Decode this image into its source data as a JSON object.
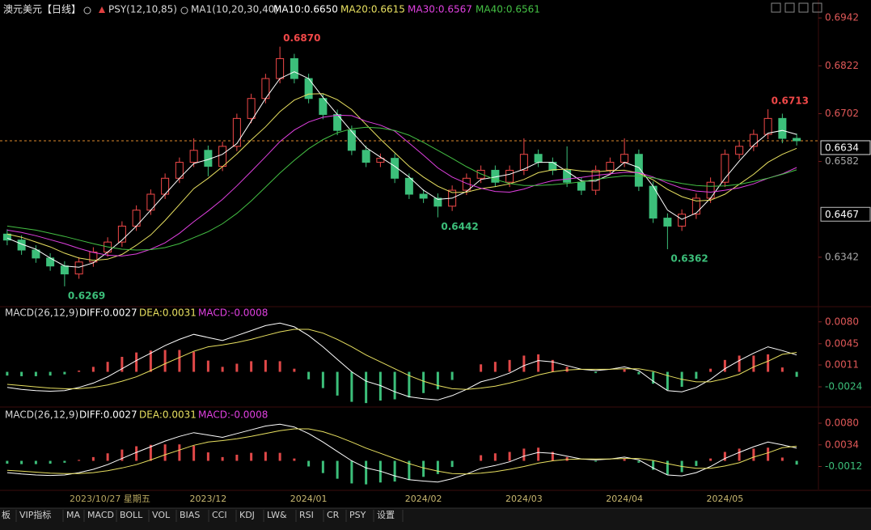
{
  "chart_data": [
    {
      "type": "candlestick",
      "title": "澳元美元【日线】",
      "indicator": "PSY(12,10,85)",
      "ma_label": "MA1(10,20,30,40)",
      "categories": [
        null,
        null,
        null,
        null,
        null,
        null,
        null,
        null,
        null,
        null,
        null,
        null,
        null,
        null,
        "2023/12",
        null,
        null,
        null,
        null,
        null,
        null,
        "2024/01",
        null,
        null,
        null,
        null,
        null,
        null,
        null,
        "2024/02",
        null,
        null,
        null,
        null,
        null,
        null,
        "2024/03",
        null,
        null,
        null,
        null,
        null,
        null,
        "2024/04",
        null,
        null,
        null,
        null,
        null,
        null,
        "2024/05",
        null,
        null,
        null,
        null,
        null
      ],
      "open": [
        0.64,
        0.6385,
        0.636,
        0.634,
        0.632,
        0.63,
        0.633,
        0.6355,
        0.638,
        0.642,
        0.646,
        0.65,
        0.654,
        0.658,
        0.661,
        0.657,
        0.662,
        0.669,
        0.674,
        0.679,
        0.684,
        0.679,
        0.674,
        0.67,
        0.666,
        0.661,
        0.658,
        0.659,
        0.654,
        0.65,
        0.649,
        0.647,
        0.651,
        0.654,
        0.656,
        0.653,
        0.656,
        0.66,
        0.658,
        0.656,
        0.653,
        0.651,
        0.656,
        0.658,
        0.66,
        0.652,
        0.644,
        0.642,
        0.645,
        0.649,
        0.653,
        0.66,
        0.662,
        0.665,
        0.669,
        0.664
      ],
      "high": [
        0.6412,
        0.6397,
        0.6372,
        0.6352,
        0.6332,
        0.6342,
        0.6367,
        0.6392,
        0.6432,
        0.6472,
        0.6512,
        0.6552,
        0.6592,
        0.664,
        0.6622,
        0.6632,
        0.6702,
        0.6752,
        0.6802,
        0.687,
        0.6852,
        0.6802,
        0.6752,
        0.6712,
        0.6672,
        0.6622,
        0.6602,
        0.6602,
        0.6552,
        0.6512,
        0.6502,
        0.6522,
        0.6552,
        0.6572,
        0.6572,
        0.6572,
        0.664,
        0.6612,
        0.6592,
        0.662,
        0.6542,
        0.6572,
        0.6592,
        0.664,
        0.6612,
        0.6532,
        0.6452,
        0.6462,
        0.6502,
        0.6542,
        0.6612,
        0.6632,
        0.6662,
        0.6713,
        0.6702,
        0.6652
      ],
      "low": [
        0.6372,
        0.6348,
        0.6328,
        0.6308,
        0.6269,
        0.6288,
        0.6318,
        0.6343,
        0.6368,
        0.6408,
        0.6448,
        0.6488,
        0.6528,
        0.6568,
        0.6545,
        0.6558,
        0.6608,
        0.6678,
        0.6728,
        0.6778,
        0.6778,
        0.6728,
        0.6688,
        0.6648,
        0.6598,
        0.6568,
        0.6568,
        0.6528,
        0.6488,
        0.6478,
        0.6442,
        0.6458,
        0.6498,
        0.6528,
        0.6518,
        0.6518,
        0.6548,
        0.6568,
        0.6548,
        0.6518,
        0.6498,
        0.6498,
        0.6548,
        0.6568,
        0.6508,
        0.6428,
        0.6362,
        0.6408,
        0.6438,
        0.6478,
        0.6518,
        0.6588,
        0.6608,
        0.6638,
        0.6628,
        0.6622
      ],
      "close": [
        0.6385,
        0.636,
        0.634,
        0.632,
        0.63,
        0.633,
        0.6355,
        0.638,
        0.642,
        0.646,
        0.65,
        0.654,
        0.658,
        0.661,
        0.657,
        0.662,
        0.669,
        0.674,
        0.679,
        0.684,
        0.679,
        0.674,
        0.67,
        0.666,
        0.661,
        0.658,
        0.659,
        0.654,
        0.65,
        0.649,
        0.647,
        0.651,
        0.654,
        0.656,
        0.653,
        0.656,
        0.66,
        0.658,
        0.656,
        0.653,
        0.651,
        0.656,
        0.658,
        0.66,
        0.652,
        0.644,
        0.642,
        0.645,
        0.649,
        0.653,
        0.66,
        0.662,
        0.665,
        0.669,
        0.664,
        0.6634
      ],
      "high_labels": [
        null,
        null,
        null,
        null,
        null,
        null,
        null,
        null,
        null,
        null,
        null,
        null,
        null,
        null,
        null,
        null,
        null,
        null,
        null,
        "0.6870",
        null,
        null,
        null,
        null,
        null,
        null,
        null,
        null,
        null,
        null,
        null,
        null,
        null,
        null,
        null,
        null,
        null,
        null,
        null,
        null,
        null,
        null,
        null,
        null,
        null,
        null,
        null,
        null,
        null,
        null,
        null,
        null,
        null,
        "0.6713",
        null,
        null
      ],
      "low_labels": [
        null,
        null,
        null,
        null,
        "0.6269",
        null,
        null,
        null,
        null,
        null,
        null,
        null,
        null,
        null,
        null,
        null,
        null,
        null,
        null,
        null,
        null,
        null,
        null,
        null,
        null,
        null,
        null,
        null,
        null,
        null,
        "0.6442",
        null,
        null,
        null,
        null,
        null,
        null,
        null,
        null,
        null,
        null,
        null,
        null,
        null,
        null,
        null,
        "0.6362",
        null,
        null,
        null,
        null,
        null,
        null,
        null,
        null,
        null
      ],
      "up_color": "#f04848",
      "down_color": "#3cbf7a",
      "series": [
        {
          "name": "MA10:0.6650",
          "color": "#ffffff",
          "values": [
            0.639,
            0.6375,
            0.6362,
            0.634,
            0.632,
            0.6317,
            0.6328,
            0.6355,
            0.6385,
            0.642,
            0.646,
            0.65,
            0.654,
            0.6577,
            0.6587,
            0.66,
            0.6627,
            0.6683,
            0.674,
            0.679,
            0.6807,
            0.679,
            0.6743,
            0.67,
            0.6657,
            0.6617,
            0.6593,
            0.657,
            0.6543,
            0.651,
            0.6487,
            0.649,
            0.6507,
            0.6537,
            0.6543,
            0.655,
            0.6563,
            0.658,
            0.658,
            0.6557,
            0.6533,
            0.6533,
            0.655,
            0.658,
            0.6567,
            0.652,
            0.646,
            0.6437,
            0.6453,
            0.649,
            0.654,
            0.6583,
            0.6623,
            0.6653,
            0.666,
            0.665
          ]
        },
        {
          "name": "MA20:0.6615",
          "color": "#e8e060",
          "values": [
            0.64,
            0.6392,
            0.638,
            0.6368,
            0.6352,
            0.634,
            0.6334,
            0.6337,
            0.6349,
            0.6372,
            0.6398,
            0.6434,
            0.6474,
            0.6514,
            0.654,
            0.6569,
            0.6601,
            0.6636,
            0.6669,
            0.6707,
            0.6736,
            0.6751,
            0.6752,
            0.6737,
            0.6712,
            0.6675,
            0.6638,
            0.6604,
            0.657,
            0.6543,
            0.652,
            0.6504,
            0.6505,
            0.6514,
            0.6519,
            0.6526,
            0.6537,
            0.6554,
            0.6561,
            0.6563,
            0.6558,
            0.6556,
            0.6559,
            0.656,
            0.6553,
            0.6536,
            0.6512,
            0.6494,
            0.6483,
            0.6485,
            0.65,
            0.6525,
            0.655,
            0.658,
            0.66,
            0.6615
          ]
        },
        {
          "name": "MA30:0.6567",
          "color": "#e040e0",
          "values": [
            0.641,
            0.6404,
            0.6396,
            0.6386,
            0.6376,
            0.6364,
            0.6354,
            0.6347,
            0.6345,
            0.635,
            0.6362,
            0.6378,
            0.6402,
            0.6431,
            0.6458,
            0.6487,
            0.6521,
            0.6557,
            0.6594,
            0.6632,
            0.6661,
            0.6681,
            0.6693,
            0.6698,
            0.6697,
            0.6683,
            0.6673,
            0.6658,
            0.6628,
            0.6598,
            0.6566,
            0.6543,
            0.6527,
            0.6515,
            0.6507,
            0.6505,
            0.6513,
            0.6525,
            0.6534,
            0.6538,
            0.6542,
            0.6547,
            0.6551,
            0.6555,
            0.6554,
            0.6543,
            0.6528,
            0.6515,
            0.6508,
            0.6505,
            0.651,
            0.6516,
            0.6526,
            0.654,
            0.6551,
            0.6567
          ]
        },
        {
          "name": "MA40:0.6561",
          "color": "#44c044",
          "values": [
            0.642,
            0.6415,
            0.641,
            0.6402,
            0.6394,
            0.6385,
            0.6376,
            0.6368,
            0.6362,
            0.636,
            0.6361,
            0.6366,
            0.6376,
            0.6391,
            0.6406,
            0.6426,
            0.6452,
            0.6483,
            0.6518,
            0.6553,
            0.6585,
            0.6614,
            0.6637,
            0.6654,
            0.6664,
            0.6668,
            0.6666,
            0.666,
            0.6648,
            0.663,
            0.661,
            0.659,
            0.6569,
            0.6551,
            0.6537,
            0.6527,
            0.6522,
            0.6522,
            0.6524,
            0.6527,
            0.6531,
            0.6537,
            0.6542,
            0.6546,
            0.6545,
            0.6541,
            0.6534,
            0.6527,
            0.6522,
            0.652,
            0.6521,
            0.6525,
            0.6532,
            0.654,
            0.655,
            0.6561
          ]
        }
      ],
      "ylim": [
        0.622,
        0.6987
      ],
      "yticks": [
        0.6942,
        0.6822,
        0.6702,
        0.6582,
        0.6342
      ],
      "last_price": 0.6634,
      "last_price_color": "#e08a2c",
      "marker_price": 0.6467
    },
    {
      "type": "macd",
      "title": "MACD(26,12,9)",
      "series": [
        {
          "name": "DIFF:0.0027",
          "color": "#ffffff",
          "values": [
            -0.0025,
            -0.0028,
            -0.003,
            -0.0031,
            -0.003,
            -0.0025,
            -0.0018,
            -0.0008,
            0.0005,
            0.0018,
            0.003,
            0.0042,
            0.0052,
            0.006,
            0.0055,
            0.005,
            0.0058,
            0.0066,
            0.0074,
            0.0078,
            0.0072,
            0.0058,
            0.004,
            0.002,
            0.0,
            -0.0015,
            -0.0022,
            -0.0032,
            -0.004,
            -0.0043,
            -0.0045,
            -0.0038,
            -0.0028,
            -0.0016,
            -0.001,
            -0.0002,
            0.001,
            0.0018,
            0.0016,
            0.001,
            0.0004,
            0.0002,
            0.0004,
            0.0008,
            0.0002,
            -0.0015,
            -0.003,
            -0.0032,
            -0.0025,
            -0.0012,
            0.0005,
            0.0018,
            0.003,
            0.004,
            0.0034,
            0.0027
          ]
        },
        {
          "name": "DEA:0.0031",
          "color": "#e8e060",
          "values": [
            -0.002,
            -0.0022,
            -0.0024,
            -0.0026,
            -0.0027,
            -0.0027,
            -0.0025,
            -0.0021,
            -0.0015,
            -0.0008,
            0.0002,
            0.0013,
            0.0023,
            0.0033,
            0.004,
            0.0043,
            0.0047,
            0.0052,
            0.0058,
            0.0064,
            0.0068,
            0.0068,
            0.0062,
            0.0052,
            0.004,
            0.0027,
            0.0016,
            0.0005,
            -0.0006,
            -0.0015,
            -0.0022,
            -0.0027,
            -0.0028,
            -0.0026,
            -0.0023,
            -0.0018,
            -0.0012,
            -0.0005,
            0.0,
            0.0003,
            0.0004,
            0.0004,
            0.0004,
            0.0005,
            0.0005,
            0.0001,
            -0.0006,
            -0.0012,
            -0.0016,
            -0.0016,
            -0.0011,
            -0.0004,
            0.0008,
            0.0017,
            0.0028,
            0.0031
          ]
        }
      ],
      "histogram": {
        "name": "MACD:-0.0008",
        "color": "#e040e0",
        "up_color": "#e04848",
        "down_color": "#3cbf7a",
        "values": [
          -0.0006,
          -0.0007,
          -0.0007,
          -0.0006,
          -0.0004,
          0.0002,
          0.0008,
          0.0016,
          0.0024,
          0.0031,
          0.0034,
          0.0035,
          0.0035,
          0.0032,
          0.0018,
          0.0008,
          0.0013,
          0.0017,
          0.0019,
          0.0017,
          0.0005,
          -0.0012,
          -0.0026,
          -0.0038,
          -0.0048,
          -0.005,
          -0.0046,
          -0.0044,
          -0.0041,
          -0.0034,
          -0.0028,
          -0.0013,
          0.0,
          0.0012,
          0.0016,
          0.0019,
          0.0026,
          0.0028,
          0.0019,
          0.0008,
          0.0,
          -0.0002,
          0.0,
          0.0004,
          -0.0004,
          -0.0019,
          -0.0029,
          -0.0024,
          -0.0011,
          0.0005,
          0.0019,
          0.0026,
          0.0026,
          0.0028,
          0.0007,
          -0.0008
        ]
      },
      "ylim": [
        -0.0055,
        0.0103
      ],
      "yticks": [
        {
          "value": 0.008,
          "label": "0.0080"
        },
        0.0045,
        0.0011,
        -0.0024
      ]
    },
    {
      "type": "macd",
      "ylim": [
        -0.0061,
        0.0111
      ],
      "yticks": [
        {
          "value": 0.008,
          "label": "0.0080"
        },
        0.0034,
        -0.0012
      ]
    }
  ],
  "ui": {
    "crosshair_label": "2023/10/27 星期五",
    "tabs": [
      "板",
      "VIP指标",
      "MA",
      "MACD",
      "BOLL",
      "VOL",
      "BIAS",
      "CCI",
      "KDJ",
      "LW&",
      "RSI",
      "CR",
      "PSY",
      "设置"
    ]
  }
}
